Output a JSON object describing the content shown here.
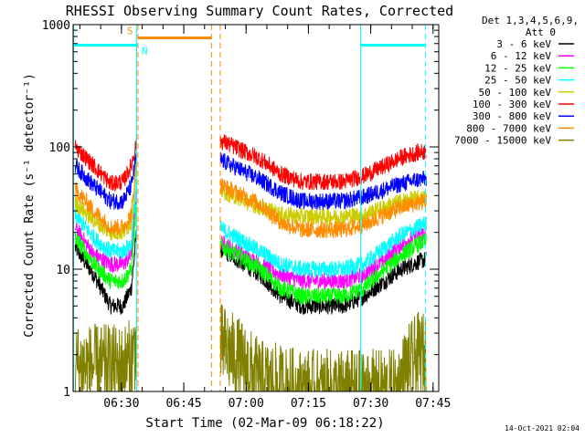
{
  "chart_data": {
    "type": "line",
    "title": "RHESSI Observing Summary Count Rates, Corrected",
    "xlabel": "Start Time (02-Mar-09 06:18:22)",
    "ylabel": "Corrected Count Rate (s⁻¹ detector⁻¹)",
    "x_unit": "minutes after 06:18:22",
    "xlim": [
      0,
      88
    ],
    "ylim": [
      1,
      1000
    ],
    "yscale": "log",
    "x_ticks": [
      {
        "t": 11.63,
        "label": "06:30"
      },
      {
        "t": 26.63,
        "label": "06:45"
      },
      {
        "t": 41.63,
        "label": "07:00"
      },
      {
        "t": 56.63,
        "label": "07:15"
      },
      {
        "t": 71.63,
        "label": "07:30"
      },
      {
        "t": 86.63,
        "label": "07:45"
      }
    ],
    "y_ticks": [
      {
        "v": 1,
        "label": "1"
      },
      {
        "v": 10,
        "label": "10"
      },
      {
        "v": 100,
        "label": "100"
      },
      {
        "v": 1000,
        "label": "1000"
      }
    ],
    "legend_header": [
      "Det 1,3,4,5,6,9,",
      "Att 0"
    ],
    "legend_position": "right",
    "series": [
      {
        "name": "3 - 6 keV",
        "color": "#000000",
        "pts": [
          [
            0.5,
            15
          ],
          [
            5,
            9
          ],
          [
            9,
            5
          ],
          [
            12,
            5
          ],
          [
            14,
            7
          ],
          [
            15.3,
            20
          ],
          [
            35,
            15
          ],
          [
            45,
            9
          ],
          [
            50,
            6
          ],
          [
            55,
            5
          ],
          [
            65,
            5
          ],
          [
            70,
            6
          ],
          [
            75,
            8
          ],
          [
            79,
            10
          ],
          [
            83,
            11.5
          ],
          [
            85,
            12
          ]
        ]
      },
      {
        "name": "6 - 12 keV",
        "color": "#ff00ff",
        "pts": [
          [
            0.5,
            22
          ],
          [
            5,
            13
          ],
          [
            9,
            11
          ],
          [
            12,
            11
          ],
          [
            14,
            13
          ],
          [
            15.3,
            45
          ],
          [
            35,
            17
          ],
          [
            45,
            11
          ],
          [
            50,
            9
          ],
          [
            55,
            8
          ],
          [
            65,
            8
          ],
          [
            70,
            9
          ],
          [
            75,
            12
          ],
          [
            79,
            16
          ],
          [
            83,
            19
          ],
          [
            85,
            20
          ]
        ]
      },
      {
        "name": "12 - 25 keV",
        "color": "#00ff00",
        "pts": [
          [
            0.5,
            18
          ],
          [
            5,
            11
          ],
          [
            9,
            8
          ],
          [
            12,
            8
          ],
          [
            14,
            10
          ],
          [
            15.3,
            35
          ],
          [
            35,
            16
          ],
          [
            45,
            10
          ],
          [
            50,
            7
          ],
          [
            55,
            6
          ],
          [
            65,
            6
          ],
          [
            70,
            7
          ],
          [
            75,
            10
          ],
          [
            79,
            13
          ],
          [
            83,
            16
          ],
          [
            85,
            17
          ]
        ]
      },
      {
        "name": "25 - 50 keV",
        "color": "#00ffff",
        "pts": [
          [
            0.5,
            28
          ],
          [
            5,
            18
          ],
          [
            9,
            14
          ],
          [
            12,
            14
          ],
          [
            14,
            16
          ],
          [
            15.3,
            55
          ],
          [
            35,
            22
          ],
          [
            45,
            14
          ],
          [
            50,
            11
          ],
          [
            55,
            10
          ],
          [
            65,
            10
          ],
          [
            70,
            11
          ],
          [
            75,
            15
          ],
          [
            79,
            19
          ],
          [
            83,
            22
          ],
          [
            85,
            24
          ]
        ]
      },
      {
        "name": "50 - 100 keV",
        "color": "#cccc00",
        "pts": [
          [
            0.5,
            35
          ],
          [
            5,
            25
          ],
          [
            9,
            20
          ],
          [
            12,
            20
          ],
          [
            14,
            24
          ],
          [
            15.3,
            70
          ],
          [
            35,
            45
          ],
          [
            45,
            32
          ],
          [
            50,
            28
          ],
          [
            55,
            27
          ],
          [
            65,
            27
          ],
          [
            70,
            28
          ],
          [
            75,
            32
          ],
          [
            79,
            36
          ],
          [
            83,
            38
          ],
          [
            85,
            38
          ]
        ]
      },
      {
        "name": "100 - 300 keV",
        "color": "#ff0000",
        "pts": [
          [
            0.5,
            100
          ],
          [
            5,
            70
          ],
          [
            9,
            50
          ],
          [
            12,
            52
          ],
          [
            14,
            70
          ],
          [
            15.3,
            110
          ],
          [
            35,
            115
          ],
          [
            45,
            80
          ],
          [
            50,
            60
          ],
          [
            55,
            52
          ],
          [
            65,
            52
          ],
          [
            70,
            58
          ],
          [
            75,
            70
          ],
          [
            79,
            82
          ],
          [
            83,
            90
          ],
          [
            85,
            92
          ]
        ]
      },
      {
        "name": "300 - 800 keV",
        "color": "#0000ff",
        "pts": [
          [
            0.5,
            70
          ],
          [
            5,
            48
          ],
          [
            9,
            36
          ],
          [
            12,
            36
          ],
          [
            14,
            48
          ],
          [
            15.3,
            85
          ],
          [
            35,
            80
          ],
          [
            45,
            54
          ],
          [
            50,
            42
          ],
          [
            55,
            36
          ],
          [
            65,
            36
          ],
          [
            70,
            39
          ],
          [
            75,
            45
          ],
          [
            79,
            50
          ],
          [
            83,
            54
          ],
          [
            85,
            55
          ]
        ]
      },
      {
        "name": "800 - 7000 keV",
        "color": "#ff8c00",
        "pts": [
          [
            0.5,
            45
          ],
          [
            5,
            30
          ],
          [
            9,
            22
          ],
          [
            12,
            22
          ],
          [
            14,
            28
          ],
          [
            15.3,
            80
          ],
          [
            35,
            50
          ],
          [
            45,
            34
          ],
          [
            50,
            24
          ],
          [
            55,
            21
          ],
          [
            65,
            21
          ],
          [
            70,
            23
          ],
          [
            75,
            28
          ],
          [
            79,
            32
          ],
          [
            83,
            35
          ],
          [
            85,
            36
          ]
        ]
      },
      {
        "name": "7000 - 15000 keV",
        "color": "#808000",
        "pts": [
          [
            0.5,
            1.6
          ],
          [
            5,
            1.6
          ],
          [
            9,
            1.6
          ],
          [
            12,
            1.6
          ],
          [
            14,
            1.8
          ],
          [
            15.3,
            2.5
          ],
          [
            35,
            2.5
          ],
          [
            40,
            1.8
          ],
          [
            45,
            1.2
          ],
          [
            55,
            1
          ],
          [
            78,
            1
          ],
          [
            80,
            1.5
          ],
          [
            83,
            2
          ],
          [
            85,
            2
          ]
        ]
      }
    ],
    "markers": [
      {
        "type": "line",
        "color": "#00ffff",
        "y": 680,
        "from": 0,
        "to": 15.6,
        "label": ""
      },
      {
        "type": "line",
        "color": "#ff8c00",
        "y": 780,
        "from": 15.6,
        "to": 33.3,
        "label": "S"
      },
      {
        "type": "line",
        "color": "#00ffff",
        "y": 680,
        "from": 15.6,
        "to": 15.6,
        "label": "N"
      },
      {
        "type": "line",
        "color": "#00ffff",
        "y": 680,
        "from": 69.2,
        "to": 84.8,
        "label": ""
      }
    ],
    "vlines": [
      {
        "t": 0.1,
        "color": "#00ffff",
        "style": "solid"
      },
      {
        "t": 15.3,
        "color": "#00ffff",
        "style": "solid"
      },
      {
        "t": 15.6,
        "color": "#ff8c00",
        "style": "dashed"
      },
      {
        "t": 33.3,
        "color": "#ff8c00",
        "style": "dashed"
      },
      {
        "t": 35.4,
        "color": "#ff8c00",
        "style": "dashed"
      },
      {
        "t": 69.2,
        "color": "#00ffff",
        "style": "solid"
      },
      {
        "t": 84.8,
        "color": "#00ffff",
        "style": "dashed"
      }
    ],
    "gaps": [
      [
        15.3,
        35.4
      ]
    ]
  },
  "footer": {
    "date_stamp": "14-Oct-2021 02:04"
  }
}
